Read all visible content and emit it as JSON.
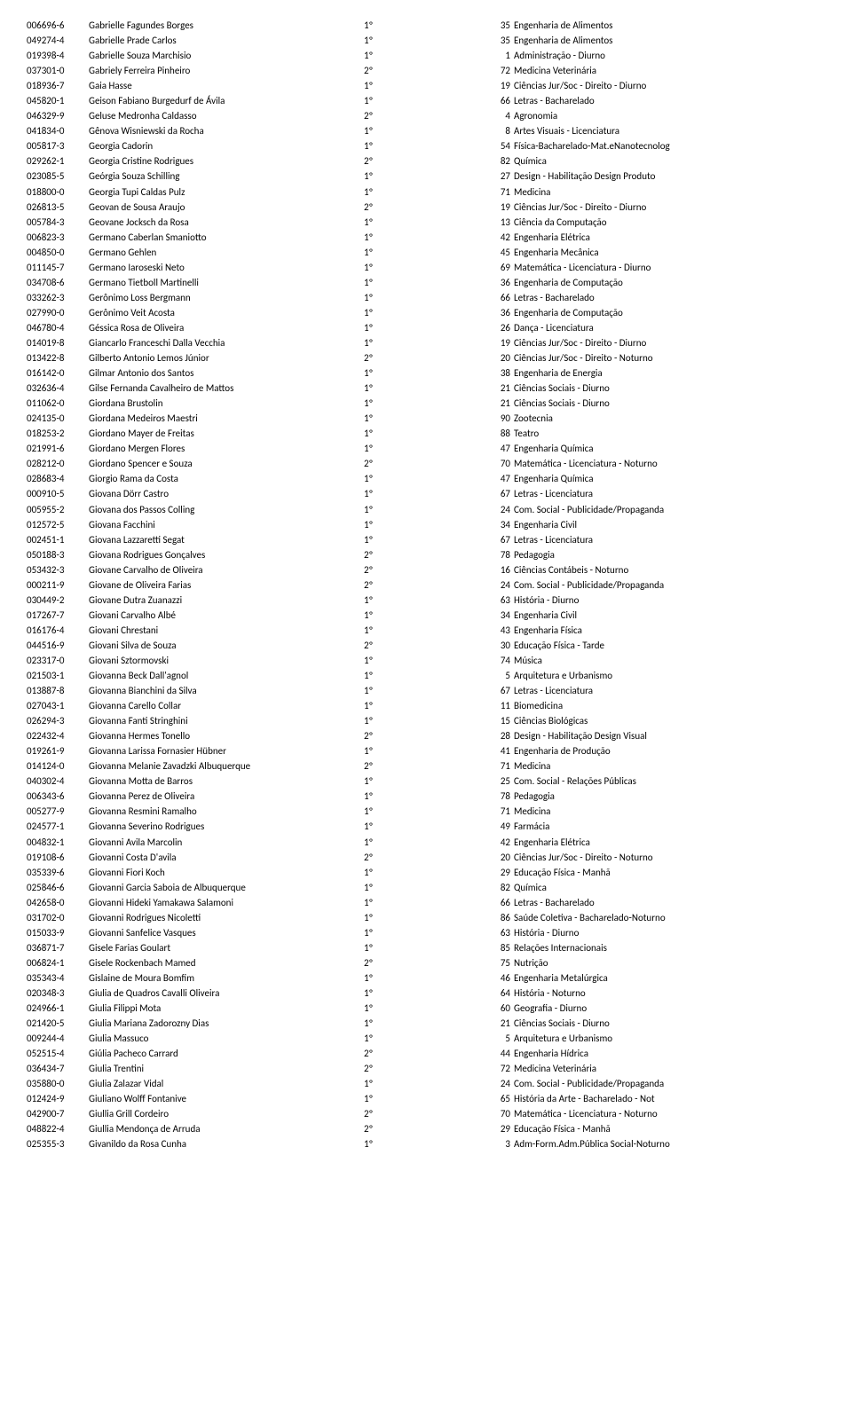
{
  "rows": [
    {
      "id": "006696-6",
      "name": "Gabrielle Fagundes Borges",
      "opt": "1º",
      "num": "35",
      "course": "Engenharia de Alimentos"
    },
    {
      "id": "049274-4",
      "name": "Gabrielle Prade Carlos",
      "opt": "1º",
      "num": "35",
      "course": "Engenharia de Alimentos"
    },
    {
      "id": "019398-4",
      "name": "Gabrielle Souza Marchisio",
      "opt": "1º",
      "num": "1",
      "course": "Administração - Diurno"
    },
    {
      "id": "037301-0",
      "name": "Gabriely Ferreira Pinheiro",
      "opt": "2º",
      "num": "72",
      "course": "Medicina Veterinária"
    },
    {
      "id": "018936-7",
      "name": "Gaia Hasse",
      "opt": "1º",
      "num": "19",
      "course": "Ciências Jur/Soc - Direito - Diurno"
    },
    {
      "id": "045820-1",
      "name": "Geison Fabiano Burgedurf de Ávila",
      "opt": "1º",
      "num": "66",
      "course": "Letras - Bacharelado"
    },
    {
      "id": "046329-9",
      "name": "Geluse Medronha Caldasso",
      "opt": "2º",
      "num": "4",
      "course": "Agronomia"
    },
    {
      "id": "041834-0",
      "name": "Gênova Wisniewski da Rocha",
      "opt": "1º",
      "num": "8",
      "course": "Artes Visuais - Licenciatura"
    },
    {
      "id": "005817-3",
      "name": "Georgia Cadorin",
      "opt": "1º",
      "num": "54",
      "course": "Física-Bacharelado-Mat.eNanotecnolog"
    },
    {
      "id": "029262-1",
      "name": "Georgia Cristine Rodrigues",
      "opt": "2º",
      "num": "82",
      "course": "Química"
    },
    {
      "id": "023085-5",
      "name": "Geórgia Souza Schilling",
      "opt": "1º",
      "num": "27",
      "course": "Design - Habilitação Design Produto"
    },
    {
      "id": "018800-0",
      "name": "Georgia Tupi Caldas Pulz",
      "opt": "1º",
      "num": "71",
      "course": "Medicina"
    },
    {
      "id": "026813-5",
      "name": "Geovan de Sousa Araujo",
      "opt": "2º",
      "num": "19",
      "course": "Ciências Jur/Soc - Direito - Diurno"
    },
    {
      "id": "005784-3",
      "name": "Geovane Jocksch da Rosa",
      "opt": "1º",
      "num": "13",
      "course": "Ciência da Computação"
    },
    {
      "id": "006823-3",
      "name": "Germano Caberlan Smaniotto",
      "opt": "1º",
      "num": "42",
      "course": "Engenharia Elétrica"
    },
    {
      "id": "004850-0",
      "name": "Germano Gehlen",
      "opt": "1º",
      "num": "45",
      "course": "Engenharia Mecânica"
    },
    {
      "id": "011145-7",
      "name": "Germano Iaroseski Neto",
      "opt": "1º",
      "num": "69",
      "course": "Matemática - Licenciatura - Diurno"
    },
    {
      "id": "034708-6",
      "name": "Germano Tietboll Martinelli",
      "opt": "1º",
      "num": "36",
      "course": "Engenharia de Computação"
    },
    {
      "id": "033262-3",
      "name": "Gerônimo Loss Bergmann",
      "opt": "1º",
      "num": "66",
      "course": "Letras - Bacharelado"
    },
    {
      "id": "027990-0",
      "name": "Gerônimo Veit Acosta",
      "opt": "1º",
      "num": "36",
      "course": "Engenharia de Computação"
    },
    {
      "id": "046780-4",
      "name": "Géssica Rosa de Oliveira",
      "opt": "1º",
      "num": "26",
      "course": "Dança - Licenciatura"
    },
    {
      "id": "014019-8",
      "name": "Giancarlo Franceschi Dalla Vecchia",
      "opt": "1º",
      "num": "19",
      "course": "Ciências Jur/Soc - Direito - Diurno"
    },
    {
      "id": "013422-8",
      "name": "Gilberto Antonio Lemos Júnior",
      "opt": "2º",
      "num": "20",
      "course": "Ciências Jur/Soc - Direito - Noturno"
    },
    {
      "id": "016142-0",
      "name": "Gilmar Antonio dos Santos",
      "opt": "1º",
      "num": "38",
      "course": "Engenharia de Energia"
    },
    {
      "id": "032636-4",
      "name": "Gilse Fernanda Cavalheiro de Mattos",
      "opt": "1º",
      "num": "21",
      "course": "Ciências Sociais - Diurno"
    },
    {
      "id": "011062-0",
      "name": "Giordana Brustolin",
      "opt": "1º",
      "num": "21",
      "course": "Ciências Sociais - Diurno"
    },
    {
      "id": "024135-0",
      "name": "Giordana Medeiros Maestri",
      "opt": "1º",
      "num": "90",
      "course": "Zootecnia"
    },
    {
      "id": "018253-2",
      "name": "Giordano Mayer de Freitas",
      "opt": "1º",
      "num": "88",
      "course": "Teatro"
    },
    {
      "id": "021991-6",
      "name": "Giordano Mergen Flores",
      "opt": "1º",
      "num": "47",
      "course": "Engenharia Química"
    },
    {
      "id": "028212-0",
      "name": "Giordano Spencer e Souza",
      "opt": "2º",
      "num": "70",
      "course": "Matemática - Licenciatura - Noturno"
    },
    {
      "id": "028683-4",
      "name": "Giorgio Rama da Costa",
      "opt": "1º",
      "num": "47",
      "course": "Engenharia Química"
    },
    {
      "id": "000910-5",
      "name": "Giovana Dörr Castro",
      "opt": "1º",
      "num": "67",
      "course": "Letras - Licenciatura"
    },
    {
      "id": "005955-2",
      "name": "Giovana dos Passos Colling",
      "opt": "1º",
      "num": "24",
      "course": "Com. Social - Publicidade/Propaganda"
    },
    {
      "id": "012572-5",
      "name": "Giovana Facchini",
      "opt": "1º",
      "num": "34",
      "course": "Engenharia Civil"
    },
    {
      "id": "002451-1",
      "name": "Giovana Lazzaretti Segat",
      "opt": "1º",
      "num": "67",
      "course": "Letras - Licenciatura"
    },
    {
      "id": "050188-3",
      "name": "Giovana Rodrigues Gonçalves",
      "opt": "2º",
      "num": "78",
      "course": "Pedagogia"
    },
    {
      "id": "053432-3",
      "name": "Giovane Carvalho de Oliveira",
      "opt": "2º",
      "num": "16",
      "course": "Ciências Contábeis - Noturno"
    },
    {
      "id": "000211-9",
      "name": "Giovane de Oliveira Farias",
      "opt": "2º",
      "num": "24",
      "course": "Com. Social - Publicidade/Propaganda"
    },
    {
      "id": "030449-2",
      "name": "Giovane Dutra Zuanazzi",
      "opt": "1º",
      "num": "63",
      "course": "História - Diurno"
    },
    {
      "id": "017267-7",
      "name": "Giovani Carvalho Albé",
      "opt": "1º",
      "num": "34",
      "course": "Engenharia Civil"
    },
    {
      "id": "016176-4",
      "name": "Giovani Chrestani",
      "opt": "1º",
      "num": "43",
      "course": "Engenharia Física"
    },
    {
      "id": "044516-9",
      "name": "Giovani Silva de Souza",
      "opt": "2º",
      "num": "30",
      "course": "Educação Física - Tarde"
    },
    {
      "id": "023317-0",
      "name": "Giovani Sztormovski",
      "opt": "1º",
      "num": "74",
      "course": "Música"
    },
    {
      "id": "021503-1",
      "name": "Giovanna Beck Dall'agnol",
      "opt": "1º",
      "num": "5",
      "course": "Arquitetura e Urbanismo"
    },
    {
      "id": "013887-8",
      "name": "Giovanna Bianchini da Silva",
      "opt": "1º",
      "num": "67",
      "course": "Letras - Licenciatura"
    },
    {
      "id": "027043-1",
      "name": "Giovanna Carello Collar",
      "opt": "1º",
      "num": "11",
      "course": "Biomedicina"
    },
    {
      "id": "026294-3",
      "name": "Giovanna Fanti Stringhini",
      "opt": "1º",
      "num": "15",
      "course": "Ciências Biológicas"
    },
    {
      "id": "022432-4",
      "name": "Giovanna Hermes Tonello",
      "opt": "2º",
      "num": "28",
      "course": "Design - Habilitação Design Visual"
    },
    {
      "id": "019261-9",
      "name": "Giovanna Larissa Fornasier Hübner",
      "opt": "1º",
      "num": "41",
      "course": "Engenharia de Produção"
    },
    {
      "id": "014124-0",
      "name": "Giovanna Melanie Zavadzki Albuquerque",
      "opt": "2º",
      "num": "71",
      "course": "Medicina"
    },
    {
      "id": "040302-4",
      "name": "Giovanna Motta de Barros",
      "opt": "1º",
      "num": "25",
      "course": "Com. Social - Relações Públicas"
    },
    {
      "id": "006343-6",
      "name": "Giovanna Perez de Oliveira",
      "opt": "1º",
      "num": "78",
      "course": "Pedagogia"
    },
    {
      "id": "005277-9",
      "name": "Giovanna Resmini Ramalho",
      "opt": "1º",
      "num": "71",
      "course": "Medicina"
    },
    {
      "id": "024577-1",
      "name": "Giovanna Severino Rodrigues",
      "opt": "1º",
      "num": "49",
      "course": "Farmácia"
    },
    {
      "id": "004832-1",
      "name": "Giovanni Avila Marcolin",
      "opt": "1º",
      "num": "42",
      "course": "Engenharia Elétrica"
    },
    {
      "id": "019108-6",
      "name": "Giovanni Costa D'avila",
      "opt": "2º",
      "num": "20",
      "course": "Ciências Jur/Soc - Direito - Noturno"
    },
    {
      "id": "035339-6",
      "name": "Giovanni Fiori Koch",
      "opt": "1º",
      "num": "29",
      "course": "Educação Física - Manhã"
    },
    {
      "id": "025846-6",
      "name": "Giovanni Garcia Saboia de Albuquerque",
      "opt": "1º",
      "num": "82",
      "course": "Química"
    },
    {
      "id": "042658-0",
      "name": "Giovanni Hideki Yamakawa Salamoni",
      "opt": "1º",
      "num": "66",
      "course": "Letras - Bacharelado"
    },
    {
      "id": "031702-0",
      "name": "Giovanni Rodrigues Nicoletti",
      "opt": "1º",
      "num": "86",
      "course": "Saúde Coletiva - Bacharelado-Noturno"
    },
    {
      "id": "015033-9",
      "name": "Giovanni Sanfelice Vasques",
      "opt": "1º",
      "num": "63",
      "course": "História - Diurno"
    },
    {
      "id": "036871-7",
      "name": "Gisele Farias Goulart",
      "opt": "1º",
      "num": "85",
      "course": "Relações Internacionais"
    },
    {
      "id": "006824-1",
      "name": "Gisele Rockenbach Mamed",
      "opt": "2º",
      "num": "75",
      "course": "Nutrição"
    },
    {
      "id": "035343-4",
      "name": "Gislaine de Moura Bomfim",
      "opt": "1º",
      "num": "46",
      "course": "Engenharia Metalúrgica"
    },
    {
      "id": "020348-3",
      "name": "Giulia de Quadros Cavalli Oliveira",
      "opt": "1º",
      "num": "64",
      "course": "História - Noturno"
    },
    {
      "id": "024966-1",
      "name": "Giulia Filippi Mota",
      "opt": "1º",
      "num": "60",
      "course": "Geografia - Diurno"
    },
    {
      "id": "021420-5",
      "name": "Giulia Mariana Zadorozny Dias",
      "opt": "1º",
      "num": "21",
      "course": "Ciências Sociais - Diurno"
    },
    {
      "id": "009244-4",
      "name": "Giulia Massuco",
      "opt": "1º",
      "num": "5",
      "course": "Arquitetura e Urbanismo"
    },
    {
      "id": "052515-4",
      "name": "Giúlia Pacheco Carrard",
      "opt": "2º",
      "num": "44",
      "course": "Engenharia Hídrica"
    },
    {
      "id": "036434-7",
      "name": "Giulia Trentini",
      "opt": "2º",
      "num": "72",
      "course": "Medicina Veterinária"
    },
    {
      "id": "035880-0",
      "name": "Giulia Zalazar Vidal",
      "opt": "1º",
      "num": "24",
      "course": "Com. Social - Publicidade/Propaganda"
    },
    {
      "id": "012424-9",
      "name": "Giuliano Wolff Fontanive",
      "opt": "1º",
      "num": "65",
      "course": "História da Arte - Bacharelado - Not"
    },
    {
      "id": "042900-7",
      "name": "Giullia Grill Cordeiro",
      "opt": "2º",
      "num": "70",
      "course": "Matemática - Licenciatura - Noturno"
    },
    {
      "id": "048822-4",
      "name": "Giullia Mendonça de Arruda",
      "opt": "2º",
      "num": "29",
      "course": "Educação Física - Manhã"
    },
    {
      "id": "025355-3",
      "name": "Givanildo da Rosa Cunha",
      "opt": "1º",
      "num": "3",
      "course": "Adm-Form.Adm.Pública Social-Noturno"
    }
  ]
}
